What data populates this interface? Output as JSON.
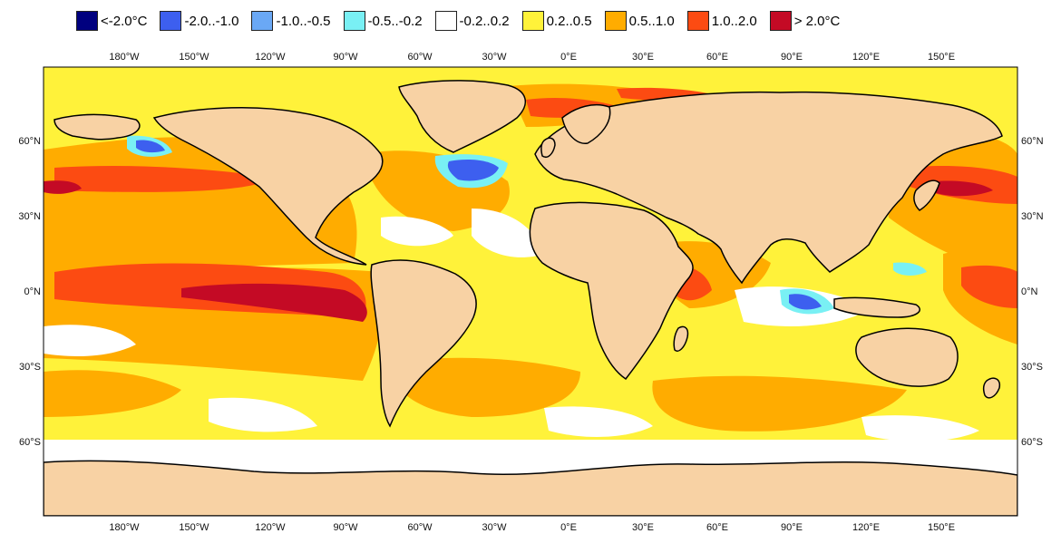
{
  "legend": [
    {
      "label": "<-2.0°C",
      "color": "#00007f"
    },
    {
      "label": "-2.0..-1.0",
      "color": "#3d5fef"
    },
    {
      "label": "-1.0..-0.5",
      "color": "#6aa8f5"
    },
    {
      "label": "-0.5..-0.2",
      "color": "#79f0f4"
    },
    {
      "label": "-0.2..0.2",
      "color": "#ffffff"
    },
    {
      "label": "0.2..0.5",
      "color": "#fff23a"
    },
    {
      "label": "0.5..1.0",
      "color": "#ffac00"
    },
    {
      "label": "1.0..2.0",
      "color": "#fc4b12"
    },
    {
      "label": "> 2.0°C",
      "color": "#c40a25"
    }
  ],
  "map": {
    "land_color": "#f8d2a4",
    "outline_color": "#000000",
    "longitude_labels": [
      "180°W",
      "150°W",
      "120°W",
      "90°W",
      "60°W",
      "30°W",
      "0°E",
      "30°E",
      "60°E",
      "90°E",
      "120°E",
      "150°E"
    ],
    "latitude_labels": [
      "60°N",
      "30°N",
      "0°N",
      "30°S",
      "60°S"
    ]
  }
}
